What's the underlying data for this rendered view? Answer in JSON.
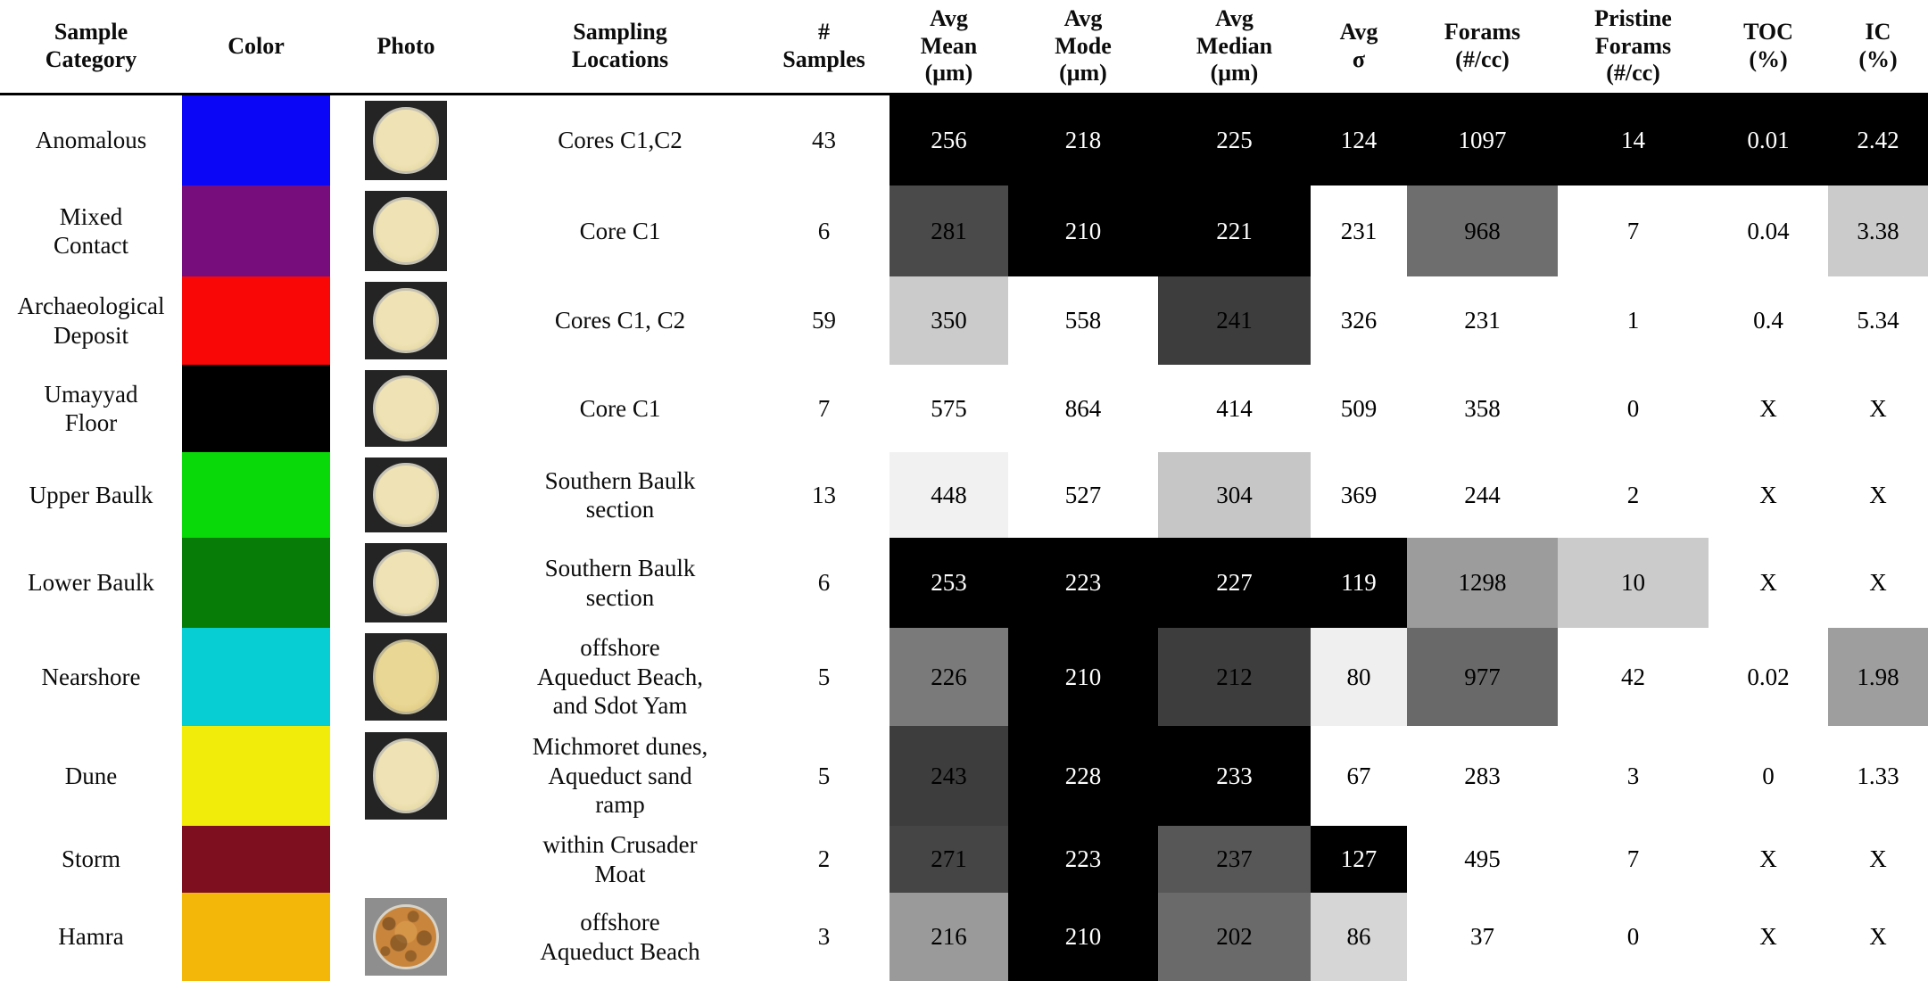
{
  "table": {
    "columns": [
      {
        "id": "sample-category",
        "label": "Sample\nCategory"
      },
      {
        "id": "color",
        "label": "Color"
      },
      {
        "id": "photo",
        "label": "Photo"
      },
      {
        "id": "sampling-locations",
        "label": "Sampling\nLocations"
      },
      {
        "id": "num-samples",
        "label": "#\nSamples"
      },
      {
        "id": "avg-mean",
        "label": "Avg\nMean\n(μm)"
      },
      {
        "id": "avg-mode",
        "label": "Avg\nMode\n(μm)"
      },
      {
        "id": "avg-median",
        "label": "Avg\nMedian\n(μm)"
      },
      {
        "id": "avg-sigma",
        "label": "Avg\nσ"
      },
      {
        "id": "forams",
        "label": "Forams\n(#/cc)"
      },
      {
        "id": "pristine-forams",
        "label": "Pristine\nForams\n(#/cc)"
      },
      {
        "id": "toc",
        "label": "TOC\n(%)"
      },
      {
        "id": "ic",
        "label": "IC\n(%)"
      }
    ],
    "rows": [
      {
        "category": "Anomalous",
        "swatch": "#0b06f5",
        "photo": "sand",
        "location": "Cores C1,C2",
        "samples": "43",
        "cells": [
          {
            "value": "256",
            "bg": "#000000",
            "fg": "#ffffff"
          },
          {
            "value": "218",
            "bg": "#000000",
            "fg": "#ffffff"
          },
          {
            "value": "225",
            "bg": "#000000",
            "fg": "#ffffff"
          },
          {
            "value": "124",
            "bg": "#000000",
            "fg": "#ffffff"
          },
          {
            "value": "1097",
            "bg": "#000000",
            "fg": "#ffffff"
          },
          {
            "value": "14",
            "bg": "#000000",
            "fg": "#ffffff"
          },
          {
            "value": "0.01",
            "bg": "#000000",
            "fg": "#ffffff"
          },
          {
            "value": "2.42",
            "bg": "#000000",
            "fg": "#ffffff"
          }
        ]
      },
      {
        "category": "Mixed\nContact",
        "swatch": "#770d7d",
        "photo": "sand",
        "location": "Core C1",
        "samples": "6",
        "cells": [
          {
            "value": "281",
            "bg": "#4a4a4a",
            "fg": "#000000"
          },
          {
            "value": "210",
            "bg": "#000000",
            "fg": "#ffffff"
          },
          {
            "value": "221",
            "bg": "#000000",
            "fg": "#ffffff"
          },
          {
            "value": "231",
            "bg": "#ffffff",
            "fg": "#000000"
          },
          {
            "value": "968",
            "bg": "#6e6e6e",
            "fg": "#000000"
          },
          {
            "value": "7",
            "bg": "#ffffff",
            "fg": "#000000"
          },
          {
            "value": "0.04",
            "bg": "#ffffff",
            "fg": "#000000"
          },
          {
            "value": "3.38",
            "bg": "#cbcbcb",
            "fg": "#000000"
          }
        ]
      },
      {
        "category": "Archaeological\nDeposit",
        "swatch": "#f90606",
        "photo": "sand",
        "location": "Cores C1, C2",
        "samples": "59",
        "cells": [
          {
            "value": "350",
            "bg": "#cbcbcb",
            "fg": "#000000"
          },
          {
            "value": "558",
            "bg": "#ffffff",
            "fg": "#000000"
          },
          {
            "value": "241",
            "bg": "#3d3d3d",
            "fg": "#000000"
          },
          {
            "value": "326",
            "bg": "#ffffff",
            "fg": "#000000"
          },
          {
            "value": "231",
            "bg": "#ffffff",
            "fg": "#000000"
          },
          {
            "value": "1",
            "bg": "#ffffff",
            "fg": "#000000"
          },
          {
            "value": "0.4",
            "bg": "#ffffff",
            "fg": "#000000"
          },
          {
            "value": "5.34",
            "bg": "#ffffff",
            "fg": "#000000"
          }
        ]
      },
      {
        "category": "Umayyad\nFloor",
        "swatch": "#000000",
        "photo": "sand",
        "location": "Core C1",
        "samples": "7",
        "cells": [
          {
            "value": "575",
            "bg": "#ffffff",
            "fg": "#000000"
          },
          {
            "value": "864",
            "bg": "#ffffff",
            "fg": "#000000"
          },
          {
            "value": "414",
            "bg": "#ffffff",
            "fg": "#000000"
          },
          {
            "value": "509",
            "bg": "#ffffff",
            "fg": "#000000"
          },
          {
            "value": "358",
            "bg": "#ffffff",
            "fg": "#000000"
          },
          {
            "value": "0",
            "bg": "#ffffff",
            "fg": "#000000"
          },
          {
            "value": "X",
            "bg": "#ffffff",
            "fg": "#000000"
          },
          {
            "value": "X",
            "bg": "#ffffff",
            "fg": "#000000"
          }
        ]
      },
      {
        "category": "Upper Baulk",
        "swatch": "#09d909",
        "photo": "sand",
        "location": "Southern Baulk\nsection",
        "samples": "13",
        "cells": [
          {
            "value": "448",
            "bg": "#f1f1f1",
            "fg": "#000000"
          },
          {
            "value": "527",
            "bg": "#ffffff",
            "fg": "#000000"
          },
          {
            "value": "304",
            "bg": "#c6c6c6",
            "fg": "#000000"
          },
          {
            "value": "369",
            "bg": "#ffffff",
            "fg": "#000000"
          },
          {
            "value": "244",
            "bg": "#ffffff",
            "fg": "#000000"
          },
          {
            "value": "2",
            "bg": "#ffffff",
            "fg": "#000000"
          },
          {
            "value": "X",
            "bg": "#ffffff",
            "fg": "#000000"
          },
          {
            "value": "X",
            "bg": "#ffffff",
            "fg": "#000000"
          }
        ]
      },
      {
        "category": "Lower Baulk",
        "swatch": "#077c07",
        "photo": "sand",
        "location": "Southern Baulk\nsection",
        "samples": "6",
        "cells": [
          {
            "value": "253",
            "bg": "#000000",
            "fg": "#ffffff"
          },
          {
            "value": "223",
            "bg": "#000000",
            "fg": "#ffffff"
          },
          {
            "value": "227",
            "bg": "#000000",
            "fg": "#ffffff"
          },
          {
            "value": "119",
            "bg": "#000000",
            "fg": "#ffffff"
          },
          {
            "value": "1298",
            "bg": "#9c9c9c",
            "fg": "#000000"
          },
          {
            "value": "10",
            "bg": "#cbcbcb",
            "fg": "#000000"
          },
          {
            "value": "X",
            "bg": "#ffffff",
            "fg": "#000000"
          },
          {
            "value": "X",
            "bg": "#ffffff",
            "fg": "#000000"
          }
        ]
      },
      {
        "category": "Nearshore",
        "swatch": "#06ced2",
        "photo": "sand-yellow",
        "location": "offshore\nAqueduct Beach,\nand Sdot Yam",
        "samples": "5",
        "cells": [
          {
            "value": "226",
            "bg": "#7a7a7a",
            "fg": "#000000"
          },
          {
            "value": "210",
            "bg": "#000000",
            "fg": "#ffffff"
          },
          {
            "value": "212",
            "bg": "#3d3d3d",
            "fg": "#000000"
          },
          {
            "value": "80",
            "bg": "#efefef",
            "fg": "#000000"
          },
          {
            "value": "977",
            "bg": "#696969",
            "fg": "#000000"
          },
          {
            "value": "42",
            "bg": "#ffffff",
            "fg": "#000000"
          },
          {
            "value": "0.02",
            "bg": "#ffffff",
            "fg": "#000000"
          },
          {
            "value": "1.98",
            "bg": "#9e9e9e",
            "fg": "#000000"
          }
        ]
      },
      {
        "category": "Dune",
        "swatch": "#f1ec0a",
        "photo": "sand",
        "location": "Michmoret dunes,\nAqueduct sand\nramp",
        "samples": "5",
        "cells": [
          {
            "value": "243",
            "bg": "#3d3d3d",
            "fg": "#000000"
          },
          {
            "value": "228",
            "bg": "#000000",
            "fg": "#ffffff"
          },
          {
            "value": "233",
            "bg": "#000000",
            "fg": "#ffffff"
          },
          {
            "value": "67",
            "bg": "#ffffff",
            "fg": "#000000"
          },
          {
            "value": "283",
            "bg": "#ffffff",
            "fg": "#000000"
          },
          {
            "value": "3",
            "bg": "#ffffff",
            "fg": "#000000"
          },
          {
            "value": "0",
            "bg": "#ffffff",
            "fg": "#000000"
          },
          {
            "value": "1.33",
            "bg": "#ffffff",
            "fg": "#000000"
          }
        ]
      },
      {
        "category": "Storm",
        "swatch": "#7d0f1e",
        "photo": null,
        "location": "within Crusader\nMoat",
        "samples": "2",
        "cells": [
          {
            "value": "271",
            "bg": "#454545",
            "fg": "#000000"
          },
          {
            "value": "223",
            "bg": "#000000",
            "fg": "#ffffff"
          },
          {
            "value": "237",
            "bg": "#575757",
            "fg": "#000000"
          },
          {
            "value": "127",
            "bg": "#000000",
            "fg": "#ffffff"
          },
          {
            "value": "495",
            "bg": "#ffffff",
            "fg": "#000000"
          },
          {
            "value": "7",
            "bg": "#ffffff",
            "fg": "#000000"
          },
          {
            "value": "X",
            "bg": "#ffffff",
            "fg": "#000000"
          },
          {
            "value": "X",
            "bg": "#ffffff",
            "fg": "#000000"
          }
        ]
      },
      {
        "category": "Hamra",
        "swatch": "#f3b70a",
        "photo": "hamra",
        "location": "offshore\nAqueduct Beach",
        "samples": "3",
        "cells": [
          {
            "value": "216",
            "bg": "#9a9a9a",
            "fg": "#000000"
          },
          {
            "value": "210",
            "bg": "#000000",
            "fg": "#ffffff"
          },
          {
            "value": "202",
            "bg": "#6a6a6a",
            "fg": "#000000"
          },
          {
            "value": "86",
            "bg": "#d6d6d6",
            "fg": "#000000"
          },
          {
            "value": "37",
            "bg": "#ffffff",
            "fg": "#000000"
          },
          {
            "value": "0",
            "bg": "#ffffff",
            "fg": "#000000"
          },
          {
            "value": "X",
            "bg": "#ffffff",
            "fg": "#000000"
          },
          {
            "value": "X",
            "bg": "#ffffff",
            "fg": "#000000"
          }
        ]
      }
    ]
  }
}
